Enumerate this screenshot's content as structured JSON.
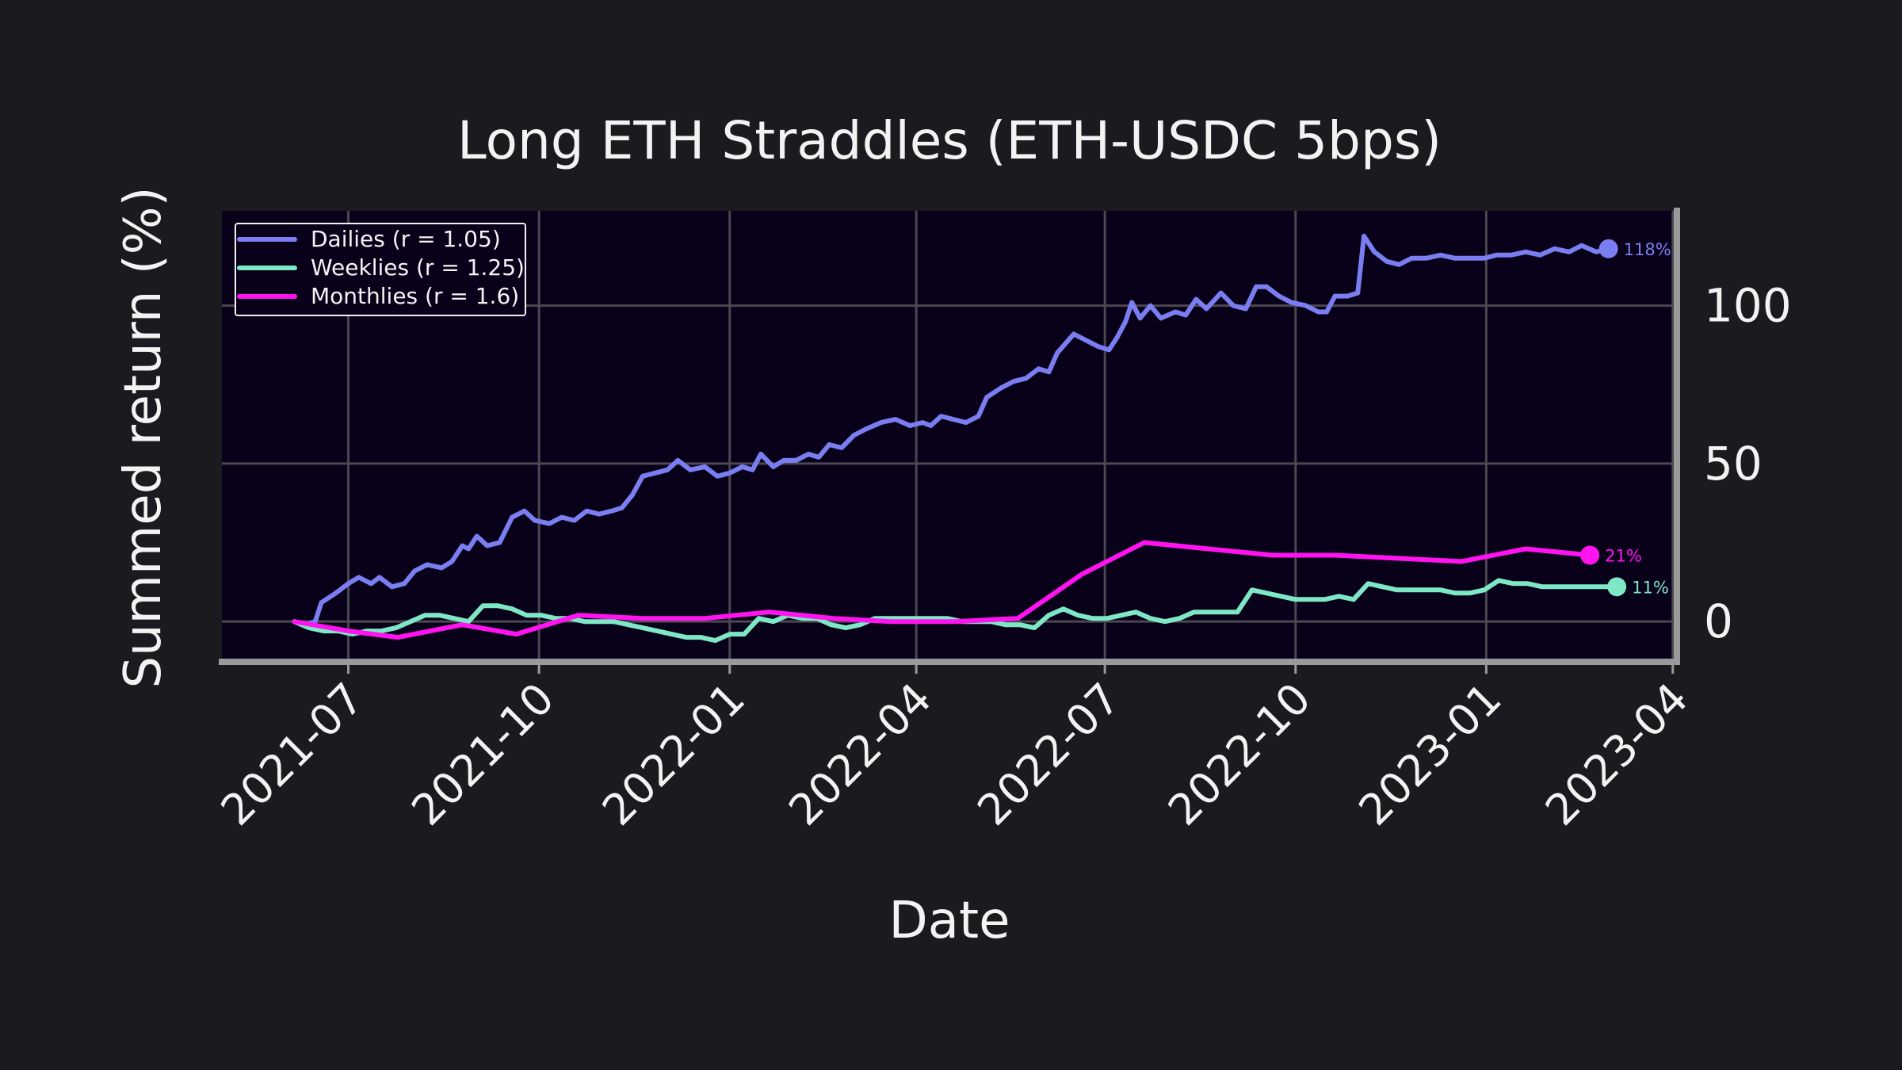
{
  "chart_data": {
    "type": "line",
    "title": "Long ETH Straddles (ETH-USDC 5bps)",
    "xlabel": "Date",
    "ylabel": "Summed return (%)",
    "x_ticks": [
      "2021-07",
      "2021-10",
      "2022-01",
      "2022-04",
      "2022-07",
      "2022-10",
      "2023-01",
      "2023-04"
    ],
    "y_ticks": [
      "0",
      "50",
      "100"
    ],
    "ylim": [
      -12,
      130
    ],
    "xlim": [
      "2021-05-01",
      "2023-04-03"
    ],
    "y_axis_side": "right",
    "grid": true,
    "legend_position": "top-left",
    "background": "#1b1a1f",
    "plot_background": "#09001a",
    "series": [
      {
        "name": "Dailies (r = 1.05)",
        "color": "#7a7ef0",
        "end_label": "118%",
        "points": [
          [
            "2021-06-05",
            0
          ],
          [
            "2021-06-10",
            -1
          ],
          [
            "2021-06-15",
            0
          ],
          [
            "2021-06-18",
            6
          ],
          [
            "2021-06-25",
            9
          ],
          [
            "2021-07-01",
            12
          ],
          [
            "2021-07-06",
            14
          ],
          [
            "2021-07-12",
            12
          ],
          [
            "2021-07-16",
            14
          ],
          [
            "2021-07-22",
            11
          ],
          [
            "2021-07-28",
            12
          ],
          [
            "2021-08-02",
            16
          ],
          [
            "2021-08-08",
            18
          ],
          [
            "2021-08-15",
            17
          ],
          [
            "2021-08-20",
            19
          ],
          [
            "2021-08-25",
            24
          ],
          [
            "2021-08-28",
            23
          ],
          [
            "2021-09-01",
            27
          ],
          [
            "2021-09-06",
            24
          ],
          [
            "2021-09-12",
            25
          ],
          [
            "2021-09-18",
            33
          ],
          [
            "2021-09-24",
            35
          ],
          [
            "2021-09-29",
            32
          ],
          [
            "2021-10-06",
            31
          ],
          [
            "2021-10-12",
            33
          ],
          [
            "2021-10-18",
            32
          ],
          [
            "2021-10-24",
            35
          ],
          [
            "2021-10-30",
            34
          ],
          [
            "2021-11-05",
            35
          ],
          [
            "2021-11-10",
            36
          ],
          [
            "2021-11-15",
            40
          ],
          [
            "2021-11-20",
            46
          ],
          [
            "2021-11-26",
            47
          ],
          [
            "2021-12-02",
            48
          ],
          [
            "2021-12-07",
            51
          ],
          [
            "2021-12-13",
            48
          ],
          [
            "2021-12-20",
            49
          ],
          [
            "2021-12-26",
            46
          ],
          [
            "2022-01-01",
            47
          ],
          [
            "2022-01-07",
            49
          ],
          [
            "2022-01-12",
            48
          ],
          [
            "2022-01-16",
            53
          ],
          [
            "2022-01-22",
            49
          ],
          [
            "2022-01-27",
            51
          ],
          [
            "2022-02-02",
            51
          ],
          [
            "2022-02-08",
            53
          ],
          [
            "2022-02-13",
            52
          ],
          [
            "2022-02-18",
            56
          ],
          [
            "2022-02-24",
            55
          ],
          [
            "2022-03-02",
            59
          ],
          [
            "2022-03-08",
            61
          ],
          [
            "2022-03-15",
            63
          ],
          [
            "2022-03-22",
            64
          ],
          [
            "2022-03-29",
            62
          ],
          [
            "2022-04-04",
            63
          ],
          [
            "2022-04-08",
            62
          ],
          [
            "2022-04-13",
            65
          ],
          [
            "2022-04-19",
            64
          ],
          [
            "2022-04-25",
            63
          ],
          [
            "2022-05-01",
            65
          ],
          [
            "2022-05-05",
            71
          ],
          [
            "2022-05-12",
            74
          ],
          [
            "2022-05-18",
            76
          ],
          [
            "2022-05-24",
            77
          ],
          [
            "2022-05-30",
            80
          ],
          [
            "2022-06-04",
            79
          ],
          [
            "2022-06-08",
            85
          ],
          [
            "2022-06-12",
            88
          ],
          [
            "2022-06-16",
            91
          ],
          [
            "2022-06-22",
            89
          ],
          [
            "2022-06-28",
            87
          ],
          [
            "2022-07-03",
            86
          ],
          [
            "2022-07-07",
            90
          ],
          [
            "2022-07-11",
            95
          ],
          [
            "2022-07-14",
            101
          ],
          [
            "2022-07-18",
            96
          ],
          [
            "2022-07-23",
            100
          ],
          [
            "2022-07-28",
            96
          ],
          [
            "2022-08-04",
            98
          ],
          [
            "2022-08-09",
            97
          ],
          [
            "2022-08-14",
            102
          ],
          [
            "2022-08-19",
            99
          ],
          [
            "2022-08-26",
            104
          ],
          [
            "2022-09-01",
            100
          ],
          [
            "2022-09-07",
            99
          ],
          [
            "2022-09-12",
            106
          ],
          [
            "2022-09-17",
            106
          ],
          [
            "2022-09-23",
            103
          ],
          [
            "2022-09-29",
            101
          ],
          [
            "2022-10-06",
            100
          ],
          [
            "2022-10-12",
            98
          ],
          [
            "2022-10-16",
            98
          ],
          [
            "2022-10-20",
            103
          ],
          [
            "2022-10-26",
            103
          ],
          [
            "2022-10-31",
            104
          ],
          [
            "2022-11-03",
            122
          ],
          [
            "2022-11-08",
            117
          ],
          [
            "2022-11-14",
            114
          ],
          [
            "2022-11-20",
            113
          ],
          [
            "2022-11-26",
            115
          ],
          [
            "2022-12-03",
            115
          ],
          [
            "2022-12-10",
            116
          ],
          [
            "2022-12-17",
            115
          ],
          [
            "2022-12-24",
            115
          ],
          [
            "2022-12-31",
            115
          ],
          [
            "2023-01-06",
            116
          ],
          [
            "2023-01-13",
            116
          ],
          [
            "2023-01-20",
            117
          ],
          [
            "2023-01-27",
            116
          ],
          [
            "2023-02-03",
            118
          ],
          [
            "2023-02-10",
            117
          ],
          [
            "2023-02-16",
            119
          ],
          [
            "2023-02-23",
            117
          ],
          [
            "2023-03-01",
            118
          ]
        ]
      },
      {
        "name": "Weeklies (r = 1.25)",
        "color": "#7ee7c5",
        "end_label": "11%",
        "points": [
          [
            "2021-06-05",
            0
          ],
          [
            "2021-06-12",
            -2
          ],
          [
            "2021-06-19",
            -3
          ],
          [
            "2021-06-26",
            -3
          ],
          [
            "2021-07-03",
            -4
          ],
          [
            "2021-07-10",
            -3
          ],
          [
            "2021-07-17",
            -3
          ],
          [
            "2021-07-24",
            -2
          ],
          [
            "2021-07-31",
            0
          ],
          [
            "2021-08-07",
            2
          ],
          [
            "2021-08-14",
            2
          ],
          [
            "2021-08-21",
            1
          ],
          [
            "2021-08-28",
            0
          ],
          [
            "2021-09-04",
            5
          ],
          [
            "2021-09-11",
            5
          ],
          [
            "2021-09-18",
            4
          ],
          [
            "2021-09-25",
            2
          ],
          [
            "2021-10-02",
            2
          ],
          [
            "2021-10-09",
            1
          ],
          [
            "2021-10-16",
            1
          ],
          [
            "2021-10-23",
            0
          ],
          [
            "2021-10-30",
            0
          ],
          [
            "2021-11-06",
            0
          ],
          [
            "2021-11-13",
            -1
          ],
          [
            "2021-11-20",
            -2
          ],
          [
            "2021-11-27",
            -3
          ],
          [
            "2021-12-04",
            -4
          ],
          [
            "2021-12-11",
            -5
          ],
          [
            "2021-12-18",
            -5
          ],
          [
            "2021-12-25",
            -6
          ],
          [
            "2022-01-01",
            -4
          ],
          [
            "2022-01-08",
            -4
          ],
          [
            "2022-01-15",
            1
          ],
          [
            "2022-01-22",
            0
          ],
          [
            "2022-01-29",
            2
          ],
          [
            "2022-02-05",
            1
          ],
          [
            "2022-02-12",
            1
          ],
          [
            "2022-02-19",
            -1
          ],
          [
            "2022-02-26",
            -2
          ],
          [
            "2022-03-05",
            -1
          ],
          [
            "2022-03-12",
            1
          ],
          [
            "2022-03-19",
            1
          ],
          [
            "2022-03-26",
            1
          ],
          [
            "2022-04-02",
            1
          ],
          [
            "2022-04-09",
            1
          ],
          [
            "2022-04-16",
            1
          ],
          [
            "2022-04-23",
            0
          ],
          [
            "2022-04-30",
            0
          ],
          [
            "2022-05-07",
            0
          ],
          [
            "2022-05-14",
            -1
          ],
          [
            "2022-05-21",
            -1
          ],
          [
            "2022-05-28",
            -2
          ],
          [
            "2022-06-04",
            2
          ],
          [
            "2022-06-11",
            4
          ],
          [
            "2022-06-18",
            2
          ],
          [
            "2022-06-25",
            1
          ],
          [
            "2022-07-02",
            1
          ],
          [
            "2022-07-09",
            2
          ],
          [
            "2022-07-16",
            3
          ],
          [
            "2022-07-23",
            1
          ],
          [
            "2022-07-30",
            0
          ],
          [
            "2022-08-06",
            1
          ],
          [
            "2022-08-13",
            3
          ],
          [
            "2022-08-20",
            3
          ],
          [
            "2022-08-27",
            3
          ],
          [
            "2022-09-03",
            3
          ],
          [
            "2022-09-10",
            10
          ],
          [
            "2022-09-17",
            9
          ],
          [
            "2022-09-24",
            8
          ],
          [
            "2022-10-01",
            7
          ],
          [
            "2022-10-08",
            7
          ],
          [
            "2022-10-15",
            7
          ],
          [
            "2022-10-22",
            8
          ],
          [
            "2022-10-29",
            7
          ],
          [
            "2022-11-05",
            12
          ],
          [
            "2022-11-12",
            11
          ],
          [
            "2022-11-19",
            10
          ],
          [
            "2022-11-26",
            10
          ],
          [
            "2022-12-03",
            10
          ],
          [
            "2022-12-10",
            10
          ],
          [
            "2022-12-17",
            9
          ],
          [
            "2022-12-24",
            9
          ],
          [
            "2022-12-31",
            10
          ],
          [
            "2023-01-07",
            13
          ],
          [
            "2023-01-14",
            12
          ],
          [
            "2023-01-21",
            12
          ],
          [
            "2023-01-28",
            11
          ],
          [
            "2023-02-04",
            11
          ],
          [
            "2023-02-11",
            11
          ],
          [
            "2023-02-18",
            11
          ],
          [
            "2023-02-25",
            11
          ],
          [
            "2023-03-05",
            11
          ]
        ]
      },
      {
        "name": "Monthlies (r = 1.6)",
        "color": "#ff14f0",
        "end_label": "21%",
        "points": [
          [
            "2021-06-05",
            0
          ],
          [
            "2021-07-01",
            -3
          ],
          [
            "2021-07-25",
            -5
          ],
          [
            "2021-08-25",
            -1
          ],
          [
            "2021-09-20",
            -4
          ],
          [
            "2021-10-20",
            2
          ],
          [
            "2021-11-20",
            1
          ],
          [
            "2021-12-20",
            1
          ],
          [
            "2022-01-20",
            3
          ],
          [
            "2022-02-20",
            1
          ],
          [
            "2022-03-20",
            0
          ],
          [
            "2022-04-20",
            0
          ],
          [
            "2022-05-20",
            1
          ],
          [
            "2022-06-20",
            15
          ],
          [
            "2022-07-20",
            25
          ],
          [
            "2022-08-20",
            23
          ],
          [
            "2022-09-20",
            21
          ],
          [
            "2022-10-20",
            21
          ],
          [
            "2022-11-20",
            20
          ],
          [
            "2022-12-20",
            19
          ],
          [
            "2023-01-20",
            23
          ],
          [
            "2023-02-20",
            21
          ]
        ]
      }
    ]
  }
}
